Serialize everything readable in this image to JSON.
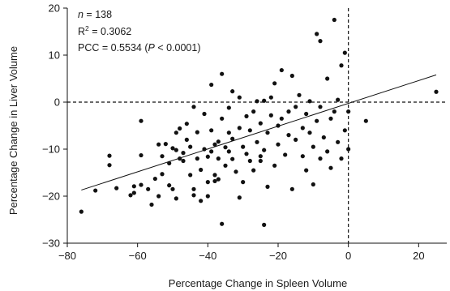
{
  "chart_data": {
    "type": "scatter",
    "title": "",
    "xlabel": "Percentage Change in Spleen Volume",
    "ylabel": "Percentage Change in Liver Volume",
    "xlim": [
      -80,
      28
    ],
    "ylim": [
      -30,
      20
    ],
    "xticks": [
      -80,
      -60,
      -40,
      -20,
      0,
      20
    ],
    "yticks": [
      -30,
      -20,
      -10,
      0,
      10,
      20
    ],
    "xtick_labels": [
      "−80",
      "−60",
      "−40",
      "−20",
      "0",
      "20"
    ],
    "ytick_labels": [
      "−30",
      "−20",
      "−10",
      "0",
      "10",
      "20"
    ],
    "grid": false,
    "reference_lines": {
      "x": 0,
      "y": 0,
      "style": "dashed"
    },
    "annotations": {
      "n_label": "n",
      "n_value": " = 138",
      "r2_label": "R",
      "r2_sup": "2",
      "r2_value": " = 0.3062",
      "pcc_text": "PCC = 0.5534 (",
      "pcc_p": "P",
      "pcc_tail": " < 0.0001)"
    },
    "trend_line": {
      "x": [
        -76,
        25
      ],
      "y": [
        -18.7,
        5.8
      ]
    },
    "marker_color": "#111111",
    "points": [
      {
        "x": -76,
        "y": -23.3
      },
      {
        "x": -72,
        "y": -18.8
      },
      {
        "x": -68,
        "y": -11.4
      },
      {
        "x": -68,
        "y": -13.4
      },
      {
        "x": -66,
        "y": -18.3
      },
      {
        "x": -62,
        "y": -19.8
      },
      {
        "x": -61,
        "y": -17.9
      },
      {
        "x": -61,
        "y": -19.3
      },
      {
        "x": -59,
        "y": -4.0
      },
      {
        "x": -59,
        "y": -11.3
      },
      {
        "x": -59,
        "y": -17.6
      },
      {
        "x": -57,
        "y": -18.5
      },
      {
        "x": -56,
        "y": -21.8
      },
      {
        "x": -55,
        "y": -16.3
      },
      {
        "x": -54,
        "y": -9.0
      },
      {
        "x": -54,
        "y": -20.0
      },
      {
        "x": -53,
        "y": -11.5
      },
      {
        "x": -53,
        "y": -15.3
      },
      {
        "x": -52,
        "y": -8.9
      },
      {
        "x": -51,
        "y": -17.7
      },
      {
        "x": -51,
        "y": -13.0
      },
      {
        "x": -50,
        "y": -9.8
      },
      {
        "x": -50,
        "y": -18.5
      },
      {
        "x": -49,
        "y": -10.2
      },
      {
        "x": -49,
        "y": -6.5
      },
      {
        "x": -49,
        "y": -20.5
      },
      {
        "x": -48,
        "y": -12.0
      },
      {
        "x": -48,
        "y": -5.6
      },
      {
        "x": -47,
        "y": -10.8
      },
      {
        "x": -47,
        "y": -12.5
      },
      {
        "x": -46,
        "y": -4.6
      },
      {
        "x": -46,
        "y": -8.0
      },
      {
        "x": -45,
        "y": -9.5
      },
      {
        "x": -45,
        "y": -15.5
      },
      {
        "x": -44,
        "y": -18.5
      },
      {
        "x": -44,
        "y": -19.8
      },
      {
        "x": -44,
        "y": -1.0
      },
      {
        "x": -43,
        "y": -6.4
      },
      {
        "x": -43,
        "y": -12.0
      },
      {
        "x": -42,
        "y": -14.4
      },
      {
        "x": -42,
        "y": -21.0
      },
      {
        "x": -41,
        "y": -2.5
      },
      {
        "x": -41,
        "y": -10.0
      },
      {
        "x": -40,
        "y": -11.6
      },
      {
        "x": -40,
        "y": -17.0
      },
      {
        "x": -40,
        "y": -20.0
      },
      {
        "x": -39,
        "y": 3.7
      },
      {
        "x": -39,
        "y": -6.0
      },
      {
        "x": -39,
        "y": -10.5
      },
      {
        "x": -38,
        "y": -9.0
      },
      {
        "x": -38,
        "y": -15.5
      },
      {
        "x": -38,
        "y": -16.8
      },
      {
        "x": -37,
        "y": -8.4
      },
      {
        "x": -37,
        "y": -12.0
      },
      {
        "x": -37,
        "y": -16.4
      },
      {
        "x": -36,
        "y": -25.9
      },
      {
        "x": -36,
        "y": 6.0
      },
      {
        "x": -36,
        "y": -3.5
      },
      {
        "x": -35,
        "y": -9.6
      },
      {
        "x": -35,
        "y": -13.5
      },
      {
        "x": -34,
        "y": -1.2
      },
      {
        "x": -34,
        "y": -6.5
      },
      {
        "x": -34,
        "y": -10.5
      },
      {
        "x": -33,
        "y": 2.3
      },
      {
        "x": -33,
        "y": -7.8
      },
      {
        "x": -33,
        "y": -12.1
      },
      {
        "x": -32,
        "y": -14.8
      },
      {
        "x": -31,
        "y": 1.0
      },
      {
        "x": -31,
        "y": -5.5
      },
      {
        "x": -31,
        "y": -20.3
      },
      {
        "x": -30,
        "y": -9.5
      },
      {
        "x": -30,
        "y": -17.0
      },
      {
        "x": -29,
        "y": -3.0
      },
      {
        "x": -29,
        "y": -11.0
      },
      {
        "x": -28,
        "y": -6.0
      },
      {
        "x": -28,
        "y": -12.5
      },
      {
        "x": -27,
        "y": -2.0
      },
      {
        "x": -27,
        "y": -14.5
      },
      {
        "x": -26,
        "y": 0.2
      },
      {
        "x": -26,
        "y": -8.5
      },
      {
        "x": -25,
        "y": -4.5
      },
      {
        "x": -25,
        "y": -11.5
      },
      {
        "x": -25,
        "y": -12.5
      },
      {
        "x": -24,
        "y": 0.3
      },
      {
        "x": -24,
        "y": -10.2
      },
      {
        "x": -24,
        "y": -26.1
      },
      {
        "x": -23,
        "y": -6.5
      },
      {
        "x": -23,
        "y": -18.0
      },
      {
        "x": -22,
        "y": 1.0
      },
      {
        "x": -22,
        "y": -2.8
      },
      {
        "x": -21,
        "y": 4.0
      },
      {
        "x": -21,
        "y": -13.5
      },
      {
        "x": -20,
        "y": -5.0
      },
      {
        "x": -20,
        "y": -9.0
      },
      {
        "x": -19,
        "y": 6.8
      },
      {
        "x": -19,
        "y": -3.5
      },
      {
        "x": -18,
        "y": -11.2
      },
      {
        "x": -17,
        "y": -2.0
      },
      {
        "x": -17,
        "y": -7.0
      },
      {
        "x": -16,
        "y": 5.6
      },
      {
        "x": -16,
        "y": -18.5
      },
      {
        "x": -15,
        "y": -1.0
      },
      {
        "x": -15,
        "y": -8.0
      },
      {
        "x": -14,
        "y": 1.5
      },
      {
        "x": -13,
        "y": -5.5
      },
      {
        "x": -13,
        "y": -11.5
      },
      {
        "x": -12,
        "y": -2.5
      },
      {
        "x": -12,
        "y": -14.5
      },
      {
        "x": -11,
        "y": 0.2
      },
      {
        "x": -11,
        "y": -6.5
      },
      {
        "x": -10,
        "y": -9.5
      },
      {
        "x": -10,
        "y": -17.5
      },
      {
        "x": -9,
        "y": 14.5
      },
      {
        "x": -9,
        "y": -4.0
      },
      {
        "x": -8,
        "y": 13.0
      },
      {
        "x": -8,
        "y": -1.0
      },
      {
        "x": -8,
        "y": -12.0
      },
      {
        "x": -7,
        "y": -7.5
      },
      {
        "x": -6,
        "y": 5.0
      },
      {
        "x": -6,
        "y": -10.5
      },
      {
        "x": -5,
        "y": -3.5
      },
      {
        "x": -5,
        "y": -14.0
      },
      {
        "x": -4,
        "y": -2.0
      },
      {
        "x": -4,
        "y": 17.5
      },
      {
        "x": -3,
        "y": -8.5
      },
      {
        "x": -3,
        "y": 0.5
      },
      {
        "x": -2,
        "y": 7.8
      },
      {
        "x": -2,
        "y": -12.0
      },
      {
        "x": -1,
        "y": 10.5
      },
      {
        "x": -1,
        "y": -6.0
      },
      {
        "x": 0,
        "y": -2.0
      },
      {
        "x": 0,
        "y": -10.0
      },
      {
        "x": 5,
        "y": -4.0
      },
      {
        "x": 25,
        "y": 2.2
      }
    ]
  }
}
